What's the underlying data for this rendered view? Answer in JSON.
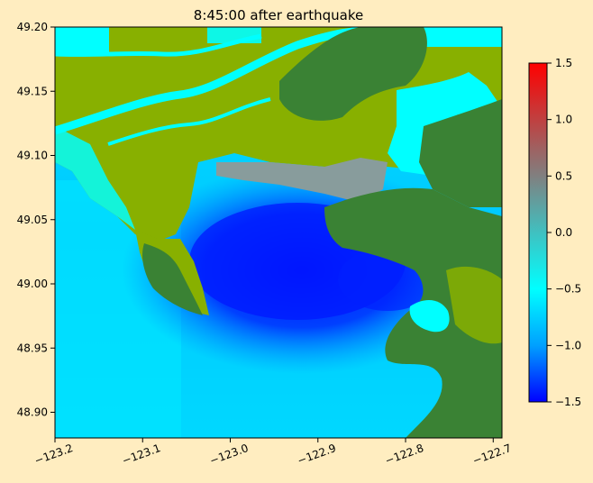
{
  "chart_data": {
    "type": "heatmap",
    "title": "8:45:00 after earthquake",
    "xlabel": "",
    "ylabel": "",
    "xlim": [
      -123.2,
      -122.69
    ],
    "ylim": [
      48.88,
      49.2
    ],
    "x_ticks": [
      {
        "value": -123.2,
        "label": "−123.2"
      },
      {
        "value": -123.1,
        "label": "−123.1"
      },
      {
        "value": -123.0,
        "label": "−123.0"
      },
      {
        "value": -122.9,
        "label": "−122.9"
      },
      {
        "value": -122.8,
        "label": "−122.8"
      },
      {
        "value": -122.7,
        "label": "−122.7"
      }
    ],
    "y_ticks": [
      {
        "value": 48.9,
        "label": "48.90"
      },
      {
        "value": 48.95,
        "label": "48.95"
      },
      {
        "value": 49.0,
        "label": "49.00"
      },
      {
        "value": 49.05,
        "label": "49.05"
      },
      {
        "value": 49.1,
        "label": "49.10"
      },
      {
        "value": 49.15,
        "label": "49.15"
      },
      {
        "value": 49.2,
        "label": "49.20"
      }
    ],
    "colorbar": {
      "range": [
        -1.5,
        1.5
      ],
      "ticks": [
        {
          "value": -1.5,
          "label": "−1.5"
        },
        {
          "value": -1.0,
          "label": "−1.0"
        },
        {
          "value": -0.5,
          "label": "−0.5"
        },
        {
          "value": 0.0,
          "label": "0.0"
        },
        {
          "value": 0.5,
          "label": "0.5"
        },
        {
          "value": 1.0,
          "label": "1.0"
        },
        {
          "value": 1.5,
          "label": "1.5"
        }
      ],
      "colors": [
        "#0000ff",
        "#00a0ff",
        "#00ffff",
        "#40c0c0",
        "#808080",
        "#c04040",
        "#ff0000"
      ]
    },
    "land_colors": {
      "lowland": "#88b000",
      "highland": "#3a8234"
    },
    "grid": false,
    "background": "#ffedc0"
  }
}
